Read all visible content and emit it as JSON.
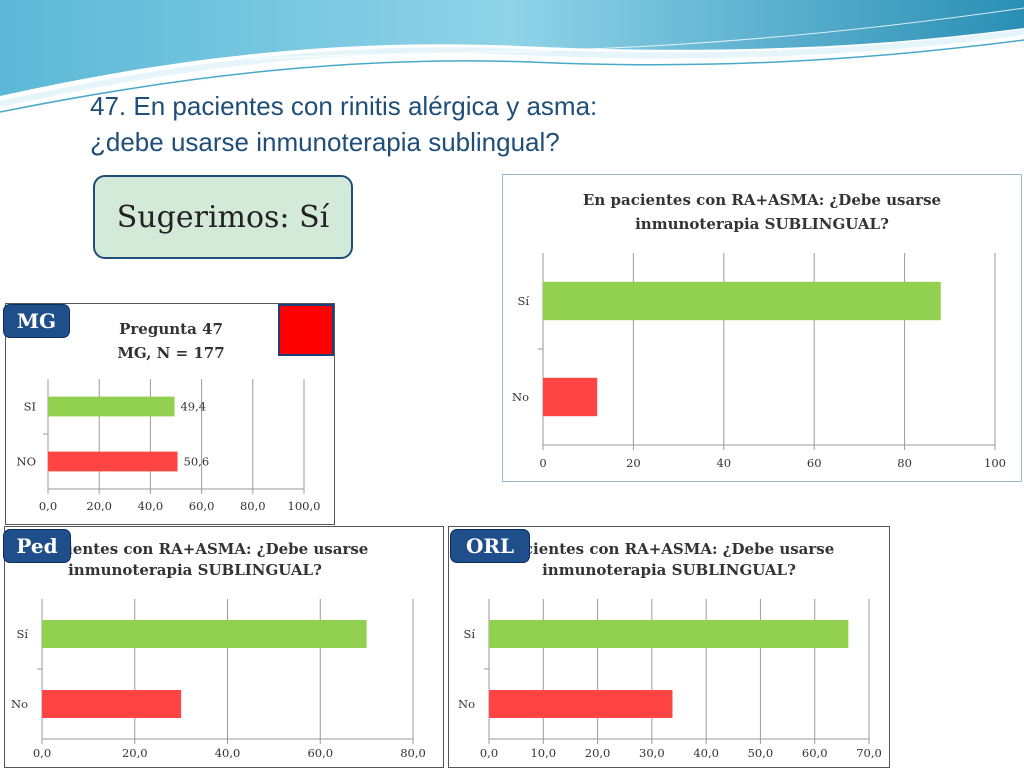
{
  "slide": {
    "title_line1": "47. En pacientes con rinitis alérgica y asma:",
    "title_line2": "¿debe usarse inmunoterapia sublingual?",
    "recommendation": "Sugerimos: Sí"
  },
  "badges": {
    "mg": "MG",
    "ped": "Ped",
    "orl": "ORL"
  },
  "colors": {
    "yes_bar": "#92d050",
    "no_bar": "#ff4444",
    "badge": "#1f4f8a",
    "title": "#1f4e79",
    "square": "#ff0000"
  },
  "chart_data": [
    {
      "id": "main",
      "type": "bar",
      "orientation": "horizontal",
      "title_lines": [
        "En pacientes con RA+ASMA: ¿Debe usarse",
        "inmunoterapia SUBLINGUAL?"
      ],
      "categories": [
        "Sí",
        "No"
      ],
      "values": [
        88,
        12
      ],
      "colors": [
        "#92d050",
        "#ff4444"
      ],
      "xlim": [
        0,
        100
      ],
      "xticks": [
        "0",
        "20",
        "40",
        "60",
        "80",
        "100"
      ],
      "grid": true,
      "show_values": false
    },
    {
      "id": "mg",
      "type": "bar",
      "orientation": "horizontal",
      "title_lines": [
        "Pregunta 47",
        "MG, N = 177"
      ],
      "categories": [
        "SI",
        "NO"
      ],
      "values": [
        49.4,
        50.6
      ],
      "value_labels": [
        "49,4",
        "50,6"
      ],
      "colors": [
        "#92d050",
        "#ff4444"
      ],
      "xlim": [
        0,
        100
      ],
      "xticks": [
        "0,0",
        "20,0",
        "40,0",
        "60,0",
        "80,0",
        "100,0"
      ],
      "grid": true,
      "show_values": true
    },
    {
      "id": "ped",
      "type": "bar",
      "orientation": "horizontal",
      "title_lines": [
        "n pacientes con RA+ASMA: ¿Debe usarse",
        "inmunoterapia SUBLINGUAL?"
      ],
      "categories": [
        "Sí",
        "No"
      ],
      "values": [
        70,
        30
      ],
      "colors": [
        "#92d050",
        "#ff4444"
      ],
      "xlim": [
        0,
        80
      ],
      "xticks": [
        "0,0",
        "20,0",
        "40,0",
        "60,0",
        "80,0"
      ],
      "grid": true,
      "show_values": false
    },
    {
      "id": "orl",
      "type": "bar",
      "orientation": "horizontal",
      "title_lines": [
        "pacientes con RA+ASMA: ¿Debe usarse",
        "inmunoterapia SUBLINGUAL?"
      ],
      "categories": [
        "Sí",
        "No"
      ],
      "values": [
        66.2,
        33.8
      ],
      "colors": [
        "#92d050",
        "#ff4444"
      ],
      "xlim": [
        0,
        70
      ],
      "xticks": [
        "0,0",
        "10,0",
        "20,0",
        "30,0",
        "40,0",
        "50,0",
        "60,0",
        "70,0"
      ],
      "grid": true,
      "show_values": false
    }
  ]
}
